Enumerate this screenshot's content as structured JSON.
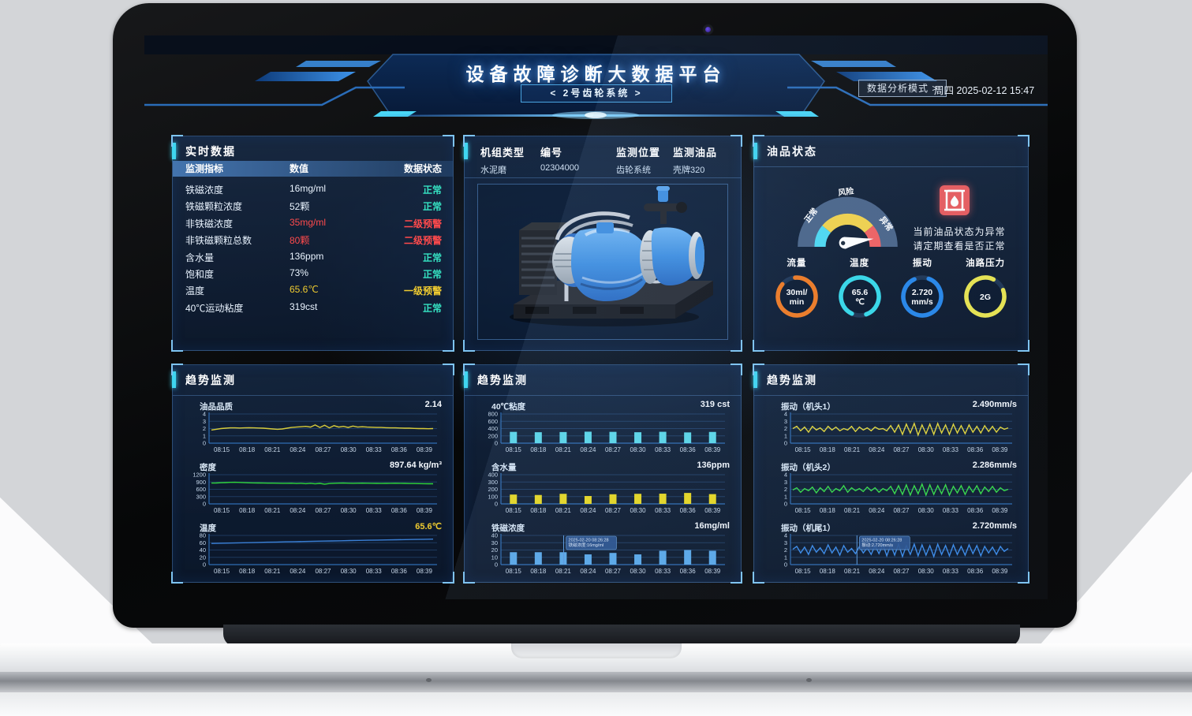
{
  "header": {
    "title": "设备故障诊断大数据平台",
    "subtitle": "< 2号齿轮系统 >",
    "mode_button": "数据分析模式 >",
    "datetime": "周四 2025-02-12 15:47"
  },
  "colors": {
    "normal": "#35e2c2",
    "warn1": "#f0cc30",
    "warn2": "#ff4a4c",
    "value_default": "#eaf4ff",
    "accent_cyan": "#3fd6f0",
    "alert_red": "#e85a5c"
  },
  "realtime_panel": {
    "title": "实时数据",
    "columns": [
      "监测指标",
      "数值",
      "数据状态"
    ],
    "rows": [
      {
        "name": "铁磁浓度",
        "value": "16mg/ml",
        "status": "正常",
        "level": "normal"
      },
      {
        "name": "铁磁颗粒浓度",
        "value": "52颗",
        "status": "正常",
        "level": "normal"
      },
      {
        "name": "非铁磁浓度",
        "value": "35mg/ml",
        "status": "二级预警",
        "level": "warn2"
      },
      {
        "name": "非铁磁颗粒总数",
        "value": "80颗",
        "status": "二级预警",
        "level": "warn2"
      },
      {
        "name": "含水量",
        "value": "136ppm",
        "status": "正常",
        "level": "normal"
      },
      {
        "name": "饱和度",
        "value": "73%",
        "status": "正常",
        "level": "normal"
      },
      {
        "name": "温度",
        "value": "65.6℃",
        "status": "一级预警",
        "level": "warn1"
      },
      {
        "name": "40℃运动粘度",
        "value": "319cst",
        "status": "正常",
        "level": "normal"
      }
    ]
  },
  "unit_panel": {
    "fields": [
      {
        "label": "机组类型",
        "value": "水泥磨"
      },
      {
        "label": "编号",
        "value": "02304000"
      },
      {
        "label": "监测位置",
        "value": "齿轮系统"
      },
      {
        "label": "监测油品",
        "value": "壳牌320"
      }
    ]
  },
  "oil_panel": {
    "title": "油品状态",
    "gauge": {
      "labels": [
        "正常",
        "风险",
        "异常"
      ],
      "colors": [
        "#4dd9f2",
        "#f2d24b",
        "#f06060"
      ],
      "status": "异常"
    },
    "alert_line1": "当前油品状态为异常",
    "alert_line2": "请定期查看是否正常",
    "rings": [
      {
        "label": "流量",
        "value_lines": [
          "30ml/",
          "min"
        ],
        "color": "#f07a21"
      },
      {
        "label": "温度",
        "value_lines": [
          "65.6",
          "℃"
        ],
        "color": "#35d8e8"
      },
      {
        "label": "振动",
        "value_lines": [
          "2.720",
          "mm/s"
        ],
        "color": "#2585e8"
      },
      {
        "label": "油路压力",
        "value_lines": [
          "2G"
        ],
        "color": "#e8e44e"
      }
    ]
  },
  "trend_title": "趋势监测",
  "chart_data": [
    {
      "type": "line",
      "name": "油品品质",
      "current": "2.14",
      "color": "#d8cc3a",
      "ylim": [
        0,
        4
      ],
      "yticks": [
        0,
        1,
        2,
        3,
        4
      ],
      "x_labels": [
        "08:15",
        "08:18",
        "08:21",
        "08:24",
        "08:27",
        "08:30",
        "08:33",
        "08:36",
        "08:39"
      ],
      "values": [
        1.8,
        1.9,
        2.0,
        2.05,
        2.1,
        2.1,
        2.08,
        2.1,
        2.12,
        2.1,
        2.08,
        2.05,
        2.0,
        1.95,
        1.9,
        1.95,
        2.05,
        2.15,
        2.2,
        2.25,
        2.3,
        2.2,
        2.5,
        2.15,
        2.45,
        2.1,
        2.4,
        2.2,
        2.3,
        2.15,
        2.35,
        2.2,
        2.25,
        2.2,
        2.18,
        2.15,
        2.15,
        2.12,
        2.1,
        2.1,
        2.08,
        2.05,
        2.05,
        2.02,
        2.0,
        2.0,
        1.98,
        2.0
      ]
    },
    {
      "type": "line",
      "name": "密度",
      "current": "897.64 kg/m³",
      "color": "#2fd53a",
      "ylim": [
        0,
        1200
      ],
      "yticks": [
        0,
        300,
        600,
        900,
        1200
      ],
      "x_labels": [
        "08:15",
        "08:18",
        "08:21",
        "08:24",
        "08:27",
        "08:30",
        "08:33",
        "08:36",
        "08:39"
      ],
      "values": [
        855,
        860,
        868,
        875,
        885,
        890,
        882,
        872,
        866,
        862,
        858,
        856,
        854,
        852,
        850,
        848,
        846,
        850,
        838,
        848,
        830,
        846,
        825,
        842,
        808,
        838,
        845,
        852,
        856,
        850,
        846,
        850,
        854,
        850,
        846,
        842,
        840,
        844,
        848,
        850,
        846,
        842,
        838,
        836,
        834,
        830,
        828,
        826
      ]
    },
    {
      "type": "line",
      "name": "温度",
      "current": "65.6℃",
      "current_color": "#f0cc30",
      "color": "#3a7fd5",
      "ylim": [
        0,
        80
      ],
      "yticks": [
        0,
        20,
        40,
        60,
        80
      ],
      "x_labels": [
        "08:15",
        "08:18",
        "08:21",
        "08:24",
        "08:27",
        "08:30",
        "08:33",
        "08:36",
        "08:39"
      ],
      "values": [
        58,
        58.6,
        59.1,
        59.7,
        60.2,
        60.8,
        61.3,
        61.8,
        62.4,
        62.9,
        63.4,
        63.9,
        64.4,
        64.9,
        65.4,
        65.9,
        66.4,
        66.8,
        67.3,
        67.7,
        68.2,
        68.6,
        69.0,
        69.4,
        69.8
      ]
    },
    {
      "type": "bar",
      "name": "40℃粘度",
      "current": "319 cst",
      "color": "#5bd7e8",
      "ylim": [
        0,
        800
      ],
      "yticks": [
        0,
        200,
        400,
        600,
        800
      ],
      "x_labels": [
        "08:15",
        "08:18",
        "08:21",
        "08:24",
        "08:27",
        "08:30",
        "08:33",
        "08:36",
        "08:39"
      ],
      "values": [
        310,
        300,
        305,
        315,
        310,
        300,
        312,
        295,
        308
      ]
    },
    {
      "type": "bar",
      "name": "含水量",
      "current": "136ppm",
      "color": "#e8d820",
      "ylim": [
        0,
        400
      ],
      "yticks": [
        0,
        100,
        200,
        300,
        400
      ],
      "x_labels": [
        "08:15",
        "08:18",
        "08:21",
        "08:24",
        "08:27",
        "08:30",
        "08:33",
        "08:36",
        "08:39"
      ],
      "values": [
        128,
        122,
        138,
        108,
        132,
        138,
        140,
        150,
        134
      ]
    },
    {
      "type": "bar",
      "name": "铁磁浓度",
      "current": "16mg/ml",
      "color": "#5aa8e8",
      "ylim": [
        0,
        40
      ],
      "yticks": [
        0,
        10,
        20,
        30,
        40
      ],
      "x_labels": [
        "08:15",
        "08:18",
        "08:21",
        "08:24",
        "08:27",
        "08:30",
        "08:33",
        "08:36",
        "08:39"
      ],
      "values": [
        17,
        17,
        17,
        14,
        16,
        14,
        19,
        20,
        19
      ],
      "tooltip": {
        "x_frac": 0.28,
        "lines": [
          "2025-02-20 08:26:28",
          "铁磁浓度:16mg/ml"
        ]
      }
    },
    {
      "type": "line",
      "name": "振动（机头1）",
      "current": "2.490mm/s",
      "color": "#e0d43a",
      "ylim": [
        0,
        4
      ],
      "yticks": [
        0,
        1,
        2,
        3,
        4
      ],
      "x_labels": [
        "08:15",
        "08:18",
        "08:21",
        "08:24",
        "08:27",
        "08:30",
        "08:33",
        "08:36",
        "08:39"
      ],
      "values": [
        2.0,
        2.3,
        1.7,
        2.2,
        1.5,
        2.3,
        1.8,
        2.1,
        1.6,
        2.3,
        1.8,
        2.2,
        1.7,
        2.0,
        1.8,
        2.3,
        1.6,
        2.2,
        1.8,
        2.1,
        1.7,
        2.2,
        1.9,
        2.0,
        1.7,
        2.4,
        1.5,
        2.5,
        1.2,
        2.6,
        1.4,
        2.7,
        1.1,
        2.5,
        1.3,
        2.6,
        1.2,
        2.7,
        1.4,
        2.5,
        1.2,
        2.6,
        1.4,
        2.4,
        1.3,
        2.5,
        1.5,
        2.3,
        1.4,
        2.4,
        1.6,
        2.3,
        1.5,
        2.2,
        1.9,
        2.1
      ]
    },
    {
      "type": "line",
      "name": "振动（机头2）",
      "current": "2.286mm/s",
      "color": "#35d848",
      "ylim": [
        0,
        4
      ],
      "yticks": [
        0,
        1,
        2,
        3,
        4
      ],
      "x_labels": [
        "08:15",
        "08:18",
        "08:21",
        "08:24",
        "08:27",
        "08:30",
        "08:33",
        "08:36",
        "08:39"
      ],
      "values": [
        1.9,
        2.2,
        1.6,
        2.1,
        1.8,
        2.3,
        1.5,
        2.2,
        1.7,
        2.4,
        1.6,
        2.1,
        1.8,
        2.5,
        1.6,
        2.2,
        1.8,
        2.1,
        1.7,
        2.3,
        1.8,
        2.2,
        1.6,
        2.1,
        1.8,
        2.4,
        1.4,
        2.5,
        1.3,
        2.6,
        1.2,
        2.5,
        1.4,
        2.7,
        1.2,
        2.6,
        1.3,
        2.5,
        1.4,
        2.6,
        1.2,
        2.4,
        1.5,
        2.5,
        1.3,
        2.4,
        1.6,
        2.5,
        1.4,
        2.3,
        1.7,
        2.4,
        1.6,
        2.2,
        1.8,
        2.0
      ]
    },
    {
      "type": "line",
      "name": "振动（机尾1）",
      "current": "2.720mm/s",
      "color": "#3a8ae8",
      "ylim": [
        0,
        4
      ],
      "yticks": [
        0,
        1,
        2,
        3,
        4
      ],
      "x_labels": [
        "08:15",
        "08:18",
        "08:21",
        "08:24",
        "08:27",
        "08:30",
        "08:33",
        "08:36",
        "08:39"
      ],
      "values": [
        2.1,
        2.5,
        1.6,
        2.4,
        1.4,
        2.6,
        1.7,
        2.3,
        1.5,
        2.7,
        1.6,
        2.4,
        1.3,
        2.6,
        1.7,
        2.2,
        1.5,
        2.5,
        1.6,
        2.3,
        1.4,
        2.6,
        1.5,
        2.8,
        1.2,
        2.7,
        1.3,
        2.8,
        1.1,
        2.6,
        1.4,
        2.8,
        1.2,
        2.7,
        1.3,
        2.6,
        1.1,
        2.8,
        1.4,
        2.6,
        1.2,
        2.7,
        1.4,
        2.5,
        1.3,
        2.7,
        1.5,
        2.6,
        1.2,
        2.5,
        1.6,
        2.4,
        1.4,
        2.5,
        1.8,
        2.2
      ],
      "tooltip": {
        "x_frac": 0.3,
        "lines": [
          "2025-02-20 08:26:28",
          "振动:2.720mm/s"
        ]
      }
    }
  ]
}
